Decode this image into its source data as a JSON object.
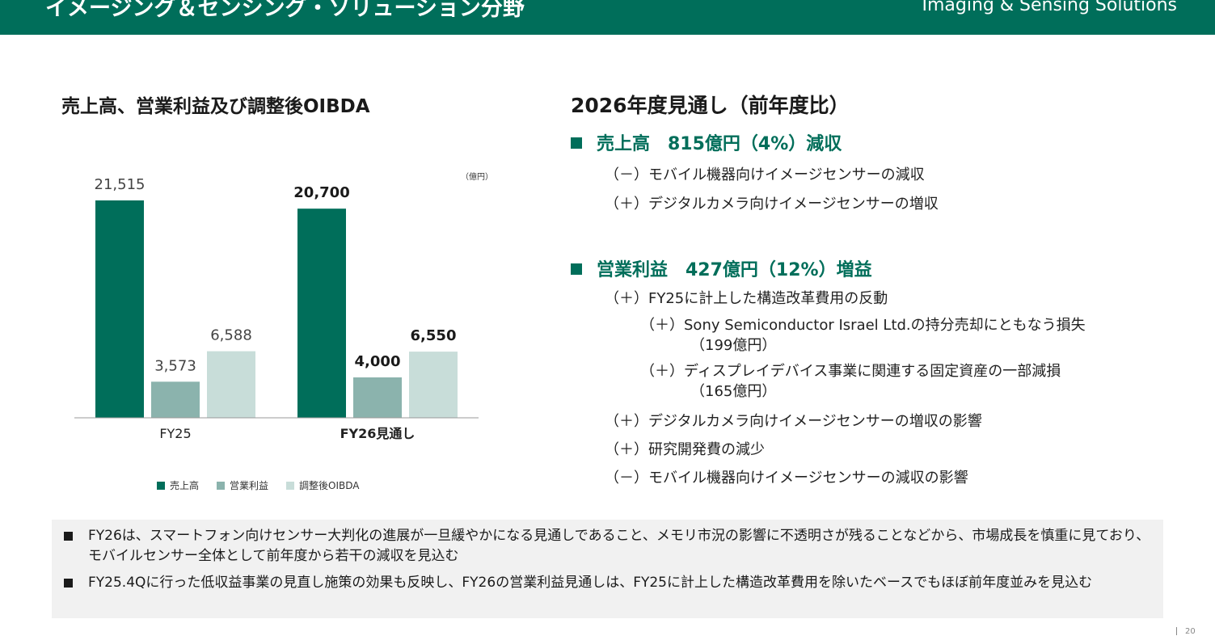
{
  "header": {
    "title_ja": "イメージング＆センシング・ソリューション分野",
    "title_en": "Imaging & Sensing Solutions"
  },
  "chart_heading": "売上高、営業利益及び調整後OIBDA",
  "chart_data": {
    "type": "bar",
    "unit_label": "（億円）",
    "categories": [
      "FY25",
      "FY26見通し"
    ],
    "series": [
      {
        "name": "売上高",
        "values": [
          21515,
          20700
        ],
        "labels": [
          "21,515",
          "20,700"
        ],
        "color": "#006e5a"
      },
      {
        "name": "営業利益",
        "values": [
          3573,
          4000
        ],
        "labels": [
          "3,573",
          "4,000"
        ],
        "color": "#8bb3ad"
      },
      {
        "name": "調整後OIBDA",
        "values": [
          6588,
          6550
        ],
        "labels": [
          "6,588",
          "6,550"
        ],
        "color": "#c8ddd9"
      }
    ],
    "ylim": [
      0,
      21515
    ],
    "legend": "bottom",
    "grid": false
  },
  "outlook": {
    "heading": "2026年度見通し（前年度比）",
    "sales": {
      "head": "売上高　815億円（4%）減収",
      "items": [
        "（－）モバイル機器向けイメージセンサーの減収",
        "（＋）デジタルカメラ向けイメージセンサーの増収"
      ]
    },
    "op": {
      "head": "営業利益　427億円（12%）増益",
      "item1": "（＋）FY25に計上した構造改革費用の反動",
      "sub1": "（＋）Sony Semiconductor Israel Ltd.の持分売却にともなう損失",
      "sub1b": "（199億円）",
      "sub2": "（＋）ディスプレイデバイス事業に関連する固定資産の一部減損",
      "sub2b": "（165億円）",
      "item2": "（＋）デジタルカメラ向けイメージセンサーの増収の影響",
      "item3": "（＋）研究開発費の減少",
      "item4": "（－）モバイル機器向けイメージセンサーの減収の影響"
    }
  },
  "notes": [
    "FY26は、スマートフォン向けセンサー大判化の進展が一旦緩やかになる見通しであること、メモリ市況の影響に不透明さが残ることなどから、市場成長を慎重に見ており、モバイルセンサー全体として前年度から若干の減収を見込む",
    "FY25.4Qに行った低収益事業の見直し施策の効果も反映し、FY26の営業利益見通しは、FY25に計上した構造改革費用を除いたベースでもほぼ前年度並みを見込む"
  ],
  "page_number": "20"
}
